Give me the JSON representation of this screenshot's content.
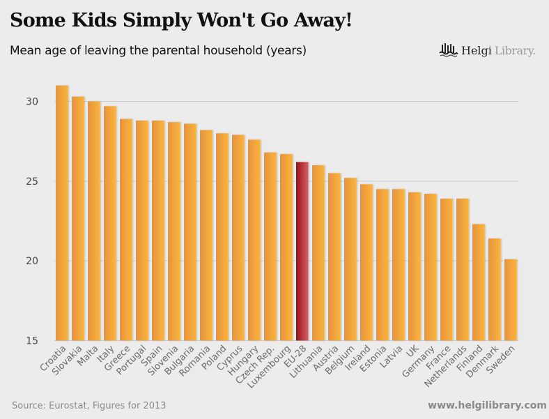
{
  "header": {
    "title": "Some Kids Simply Won't Go Away!",
    "subtitle": "Mean age of leaving the parental household (years)"
  },
  "logo": {
    "icon": "helgi-library-logo-icon",
    "text_bold": "Helgi",
    "text_light": "Library."
  },
  "footer": {
    "source": "Source: Eurostat, Figures for 2013",
    "website": "www.helgilibrary.com"
  },
  "colors": {
    "bar": "#f0a035",
    "bar_light": "#f7b43e",
    "highlight": "#a01018",
    "highlight_light": "#cc5a5e",
    "grid": "#cfcfcf",
    "background": "#ececec"
  },
  "chart_data": {
    "type": "bar",
    "title": "Some Kids Simply Won't Go Away!",
    "subtitle": "Mean age of leaving the parental household (years)",
    "xlabel": "",
    "ylabel": "",
    "ylim": [
      15,
      31.5
    ],
    "yticks": [
      15,
      20,
      25,
      30
    ],
    "grid": true,
    "legend": "none",
    "highlight": "EU-28",
    "categories": [
      "Croatia",
      "Slovakia",
      "Malta",
      "Italy",
      "Greece",
      "Portugal",
      "Spain",
      "Slovenia",
      "Bulgaria",
      "Romania",
      "Poland",
      "Cyprus",
      "Hungary",
      "Czech Rep.",
      "Luxembourg",
      "EU-28",
      "Lithuania",
      "Austria",
      "Belgium",
      "Ireland",
      "Estonia",
      "Latvia",
      "UK",
      "Germany",
      "France",
      "Netherlands",
      "Finland",
      "Denmark",
      "Sweden"
    ],
    "values": [
      31.0,
      30.3,
      30.0,
      29.7,
      28.9,
      28.8,
      28.8,
      28.7,
      28.6,
      28.2,
      28.0,
      27.9,
      27.6,
      26.8,
      26.7,
      26.2,
      26.0,
      25.5,
      25.2,
      24.8,
      24.5,
      24.5,
      24.3,
      24.2,
      23.9,
      23.9,
      22.3,
      21.4,
      20.1
    ]
  }
}
